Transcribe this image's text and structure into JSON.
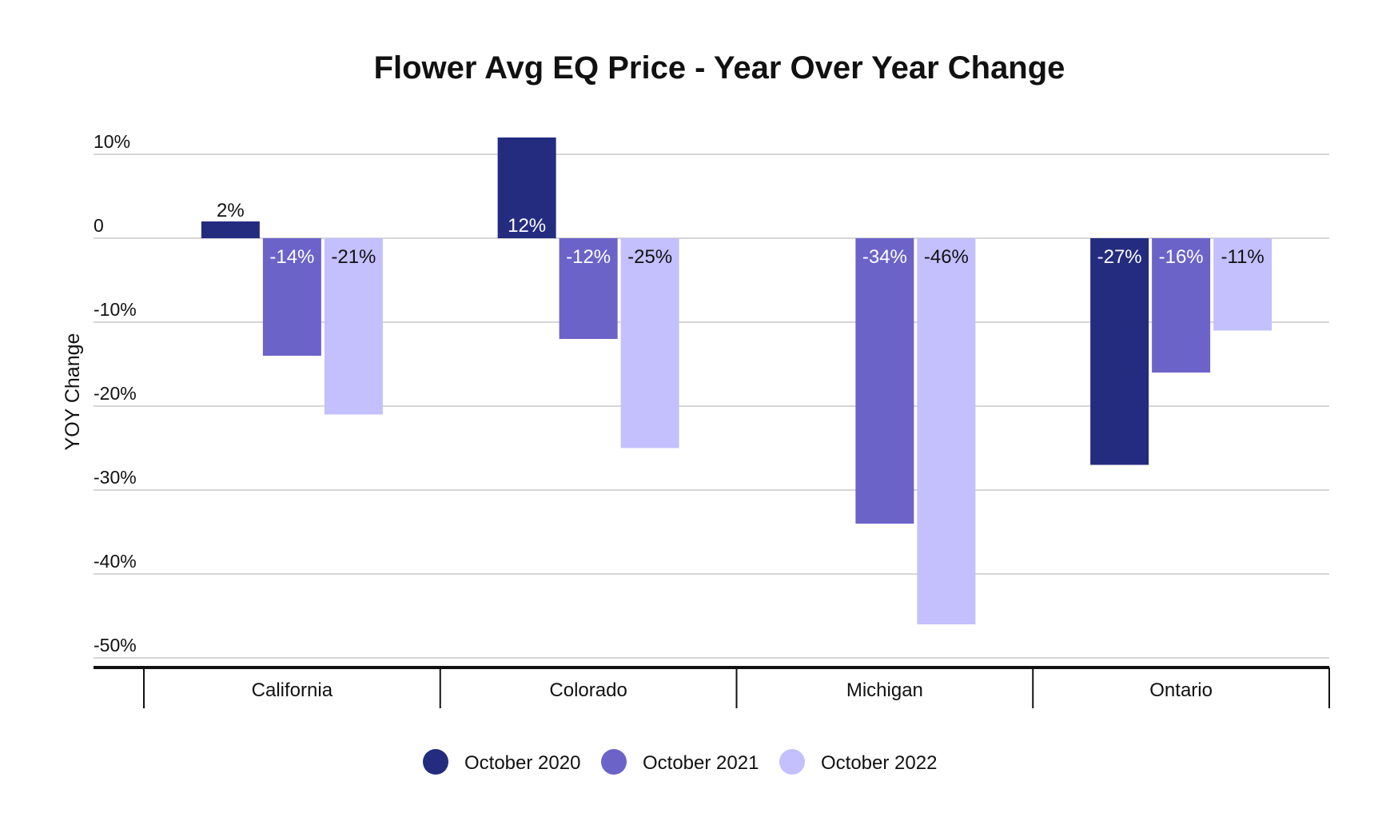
{
  "chart_data": {
    "type": "bar",
    "title": "Flower Avg EQ Price - Year Over Year Change",
    "xlabel": "",
    "ylabel": "YOY Change",
    "categories": [
      "California",
      "Colorado",
      "Michigan",
      "Ontario"
    ],
    "series": [
      {
        "name": "October 2020",
        "color": "#242c7f",
        "values": [
          2,
          12,
          null,
          -27
        ],
        "labels": [
          "2%",
          "12%",
          "",
          "-27%"
        ]
      },
      {
        "name": "October 2021",
        "color": "#6b63c8",
        "values": [
          -14,
          -12,
          -34,
          -16
        ],
        "labels": [
          "-14%",
          "-12%",
          "-34%",
          "-16%"
        ]
      },
      {
        "name": "October 2022",
        "color": "#c3c0fd",
        "values": [
          -21,
          -25,
          -46,
          -11
        ],
        "labels": [
          "-21%",
          "-25%",
          "-46%",
          "-11%"
        ]
      }
    ],
    "ylim": [
      -50,
      10
    ],
    "yticks": [
      10,
      0,
      -10,
      -20,
      -30,
      -40,
      -50
    ],
    "ytick_labels": [
      "10%",
      "0",
      "-10%",
      "-20%",
      "-30%",
      "-40%",
      "-50%"
    ],
    "grid": true,
    "legend_position": "bottom"
  }
}
